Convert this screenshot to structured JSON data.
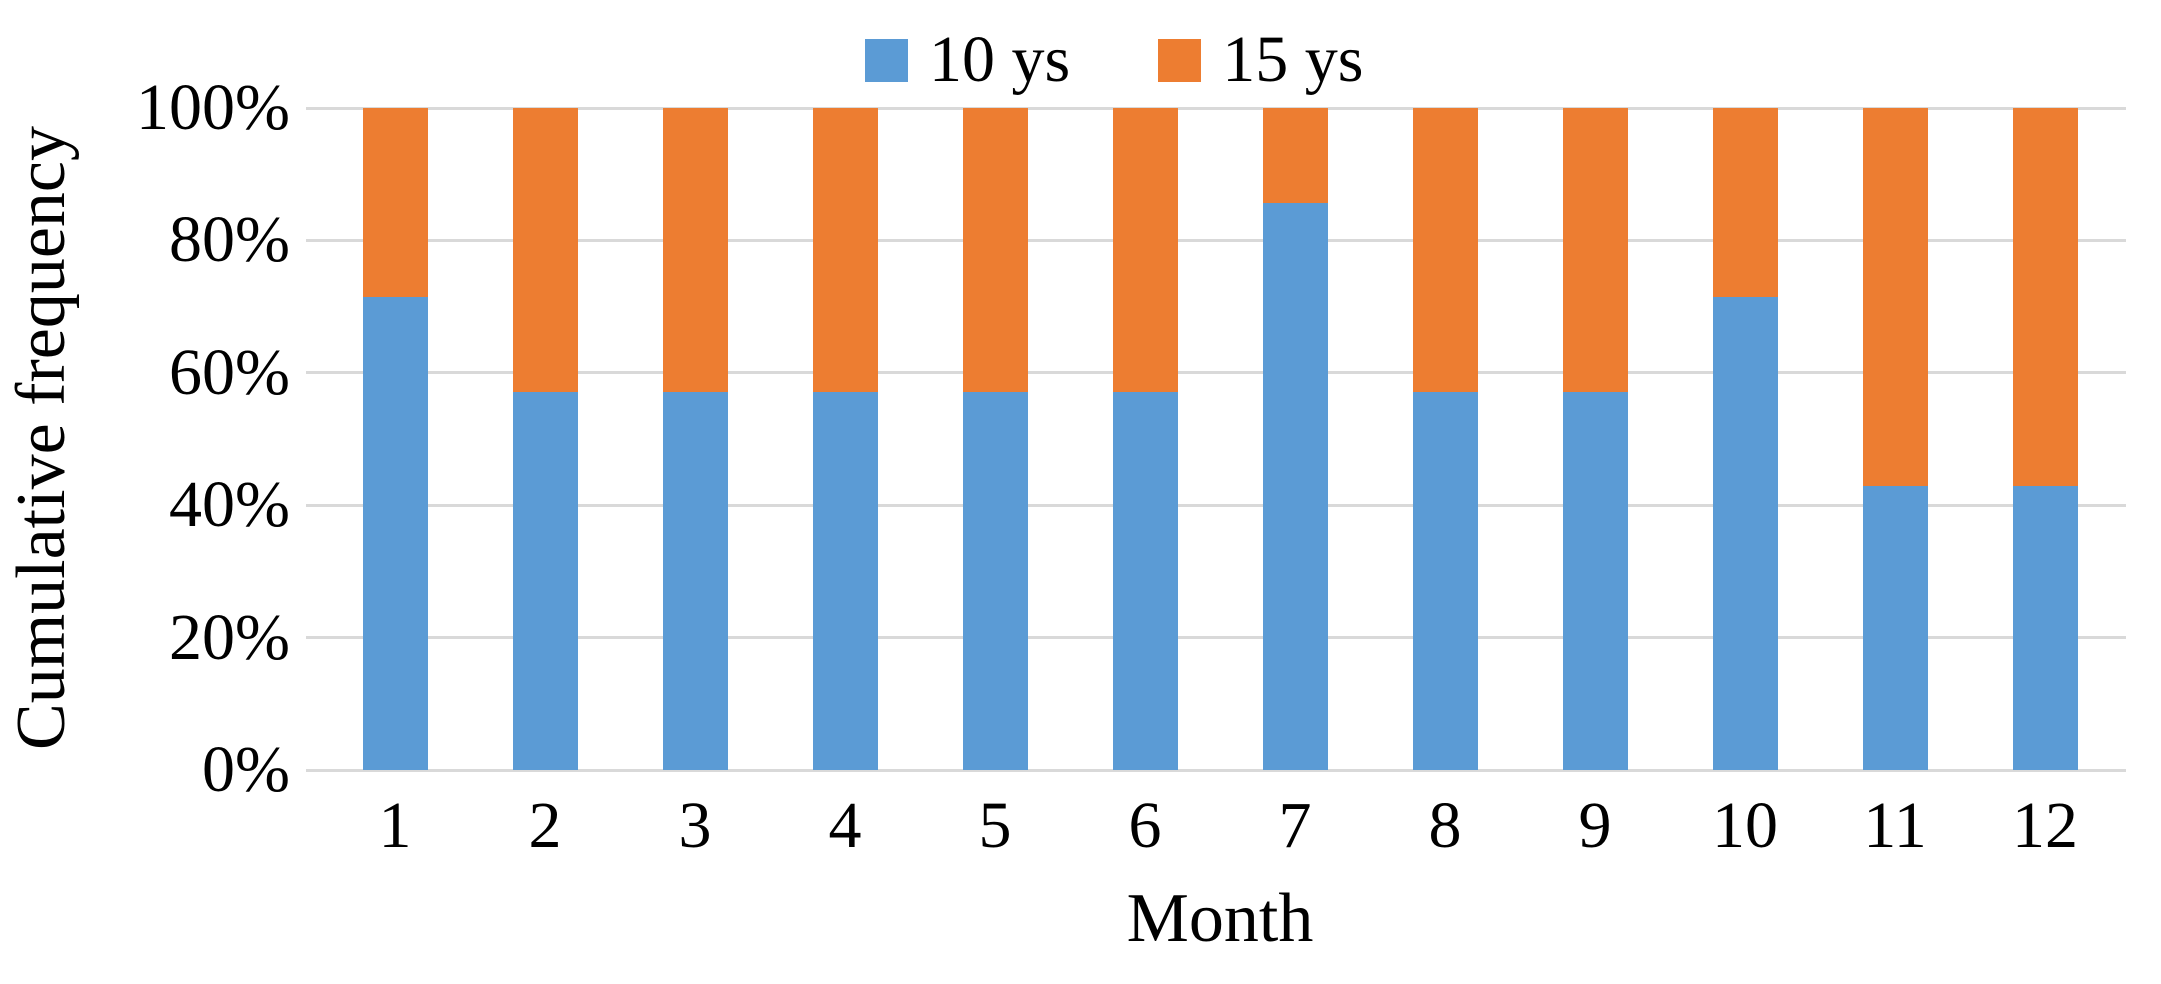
{
  "chart_data": {
    "type": "bar",
    "subtype": "stacked-100-percent",
    "title": "",
    "xlabel": "Month",
    "ylabel": "Cumulative frequency",
    "categories": [
      "1",
      "2",
      "3",
      "4",
      "5",
      "6",
      "7",
      "8",
      "9",
      "10",
      "11",
      "12"
    ],
    "series": [
      {
        "name": "10 ys",
        "color": "#5B9BD5",
        "values": [
          71.4,
          57.1,
          57.1,
          57.1,
          57.1,
          57.1,
          85.7,
          57.1,
          57.1,
          71.4,
          42.9,
          42.9
        ]
      },
      {
        "name": "15 ys",
        "color": "#ED7D31",
        "values": [
          28.6,
          42.9,
          42.9,
          42.9,
          42.9,
          42.9,
          14.3,
          42.9,
          42.9,
          28.6,
          57.1,
          57.1
        ]
      }
    ],
    "y_ticks": [
      "100%",
      "80%",
      "60%",
      "40%",
      "20%",
      "0%"
    ],
    "ylim": [
      0,
      100
    ],
    "grid": true,
    "legend_position": "top-center",
    "gridline_color": "#D9D9D9",
    "text_color": "#000000",
    "background_color": "#FFFFFF"
  }
}
